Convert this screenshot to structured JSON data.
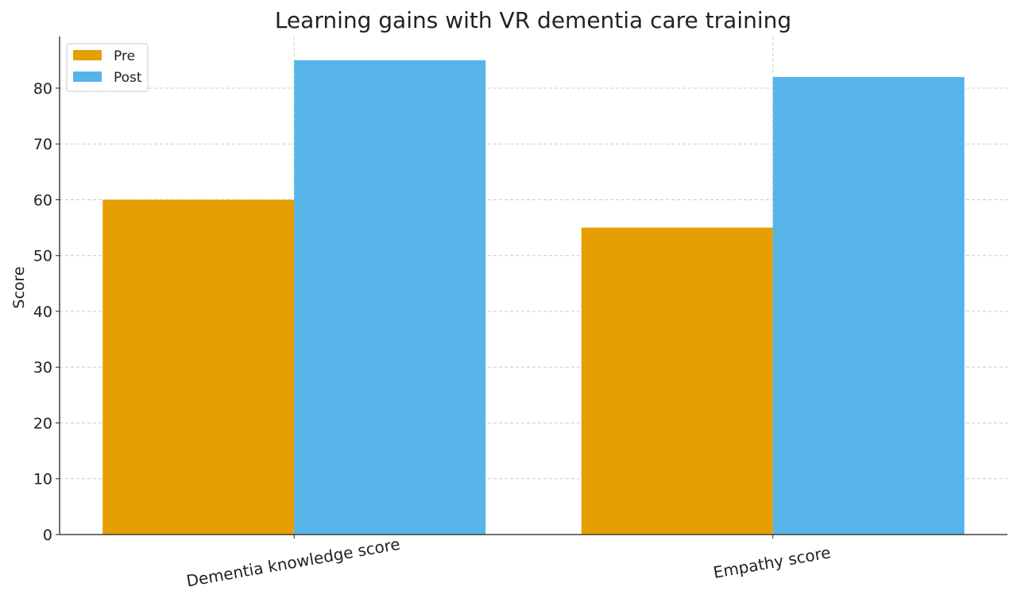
{
  "chart_data": {
    "type": "bar",
    "title": "Learning gains with VR dementia care training",
    "xlabel": "",
    "ylabel": "Score",
    "categories": [
      "Dementia knowledge score",
      "Empathy score"
    ],
    "series": [
      {
        "name": "Pre",
        "values": [
          60,
          55
        ],
        "color": "#E69F00"
      },
      {
        "name": "Post",
        "values": [
          85,
          82
        ],
        "color": "#56B4E9"
      }
    ],
    "ylim": [
      0,
      89.25
    ],
    "yticks": [
      0,
      10,
      20,
      30,
      40,
      50,
      60,
      70,
      80
    ],
    "grid": true,
    "legend": "top-left"
  }
}
